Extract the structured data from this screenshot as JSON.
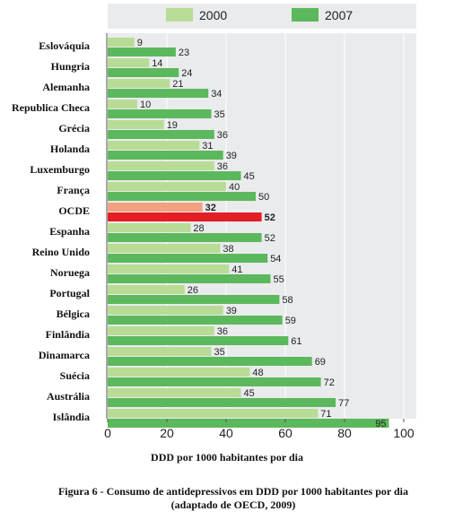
{
  "chart_data": {
    "type": "bar",
    "orientation": "horizontal",
    "categories": [
      "Eslováquia",
      "Hungria",
      "Alemanha",
      "Republica Checa",
      "Grécia",
      "Holanda",
      "Luxemburgo",
      "França",
      "OCDE",
      "Espanha",
      "Reino Unido",
      "Noruega",
      "Portugal",
      "Bélgica",
      "Finlândia",
      "Dinamarca",
      "Suécia",
      "Austrália",
      "Islândia"
    ],
    "series": [
      {
        "name": "2000",
        "values": [
          9,
          14,
          21,
          10,
          19,
          31,
          36,
          40,
          32,
          28,
          38,
          41,
          26,
          39,
          36,
          35,
          48,
          45,
          71
        ],
        "color": "#b8dc95"
      },
      {
        "name": "2007",
        "values": [
          23,
          24,
          34,
          35,
          36,
          39,
          45,
          50,
          52,
          52,
          54,
          55,
          58,
          59,
          61,
          69,
          72,
          77,
          95
        ],
        "color": "#5cb85c"
      }
    ],
    "highlight": {
      "category": "OCDE",
      "colors": {
        "2000": "#f4a17f",
        "2007": "#e31e24"
      }
    },
    "xlabel": "DDD por 1000 habitantes por dia",
    "xlim": [
      0,
      100
    ],
    "xticks": [
      0,
      20,
      40,
      60,
      80,
      100
    ],
    "legend_position": "top",
    "grid": true
  },
  "caption": "Figura 6 - Consumo de antidepressivos em DDD por 1000 habitantes por dia (adaptado de OECD, 2009)"
}
